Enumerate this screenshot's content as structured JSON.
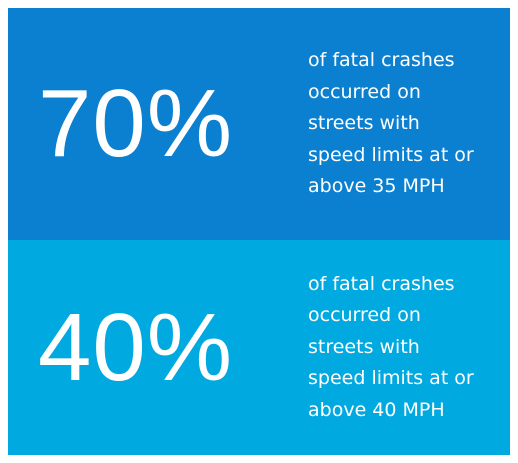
{
  "stats": [
    {
      "value": "70%",
      "description": [
        "of fatal crashes",
        "occurred on",
        "streets with",
        "speed limits at or",
        "above 35 MPH"
      ]
    },
    {
      "value": "40%",
      "description": [
        "of fatal crashes",
        "occurred on",
        "streets with",
        "speed limits at or",
        "above 40 MPH"
      ]
    }
  ]
}
